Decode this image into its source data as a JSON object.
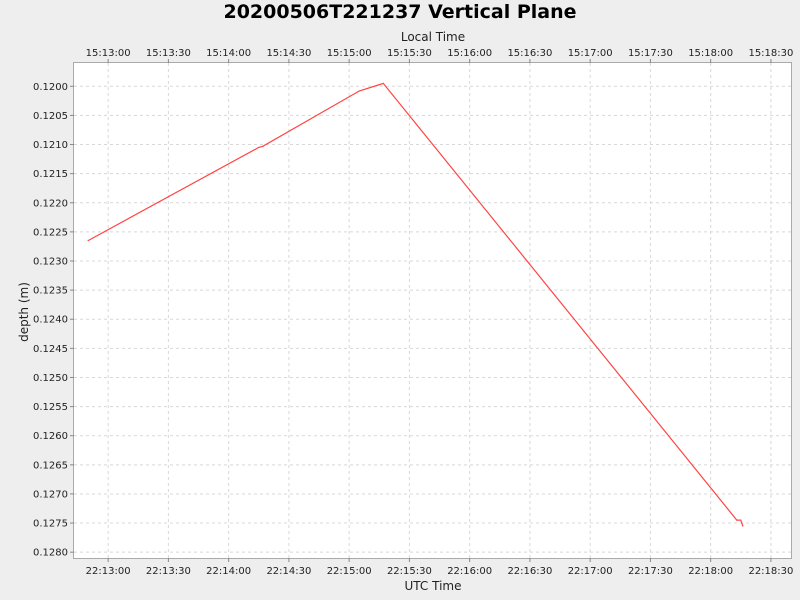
{
  "chart_data": {
    "type": "line",
    "title": "20200506T221237 Vertical Plane",
    "top_axis_label": "Local Time",
    "xlabel": "UTC Time",
    "ylabel": "depth (m)",
    "y_inverted": true,
    "ylim": [
      0.1196,
      0.1281
    ],
    "xlim": [
      "22:12:43",
      "22:18:40"
    ],
    "grid": true,
    "x_ticks_bottom": [
      "22:13:00",
      "22:13:30",
      "22:14:00",
      "22:14:30",
      "22:15:00",
      "22:15:30",
      "22:16:00",
      "22:16:30",
      "22:17:00",
      "22:17:30",
      "22:18:00",
      "22:18:30"
    ],
    "x_ticks_top": [
      "15:13:00",
      "15:13:30",
      "15:14:00",
      "15:14:30",
      "15:15:00",
      "15:15:30",
      "15:16:00",
      "15:16:30",
      "15:17:00",
      "15:17:30",
      "15:18:00",
      "15:18:30"
    ],
    "y_ticks": [
      "0.1200",
      "0.1205",
      "0.1210",
      "0.1215",
      "0.1220",
      "0.1225",
      "0.1230",
      "0.1235",
      "0.1240",
      "0.1245",
      "0.1250",
      "0.1255",
      "0.1260",
      "0.1265",
      "0.1270",
      "0.1275",
      "0.1280"
    ],
    "series": [
      {
        "color": "#ff4444",
        "points": [
          {
            "x": "22:12:50",
            "y": 0.12265
          },
          {
            "x": "22:14:15",
            "y": 0.12105
          },
          {
            "x": "22:14:17",
            "y": 0.12103
          },
          {
            "x": "22:15:05",
            "y": 0.12008
          },
          {
            "x": "22:15:17",
            "y": 0.11995
          },
          {
            "x": "22:18:13",
            "y": 0.12745
          },
          {
            "x": "22:18:15",
            "y": 0.12745
          },
          {
            "x": "22:18:16",
            "y": 0.12755
          }
        ]
      }
    ]
  }
}
